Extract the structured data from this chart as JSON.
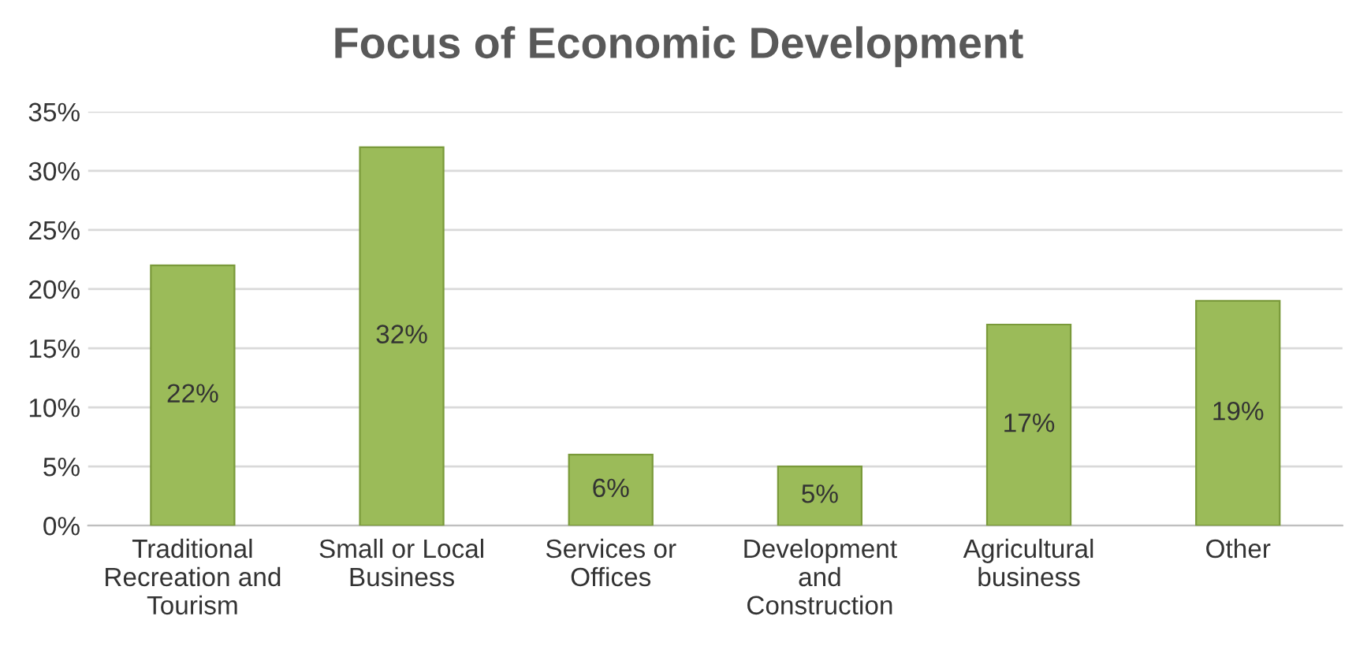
{
  "chart_data": {
    "type": "bar",
    "title": "Focus of Economic Development",
    "categories": [
      "Traditional\nRecreation and\nTourism",
      "Small or Local\nBusiness",
      "Services or\nOffices",
      "Development\nand\nConstruction",
      "Agricultural\nbusiness",
      "Other"
    ],
    "values": [
      22,
      32,
      6,
      5,
      17,
      19
    ],
    "value_labels": [
      "22%",
      "32%",
      "6%",
      "5%",
      "17%",
      "19%"
    ],
    "color": "#9bbb59",
    "ylim": [
      0,
      35
    ],
    "yticks": [
      {
        "value": 0,
        "label": "0%"
      },
      {
        "value": 5,
        "label": "5%"
      },
      {
        "value": 10,
        "label": "10%"
      },
      {
        "value": 15,
        "label": "15%"
      },
      {
        "value": 20,
        "label": "20%"
      },
      {
        "value": 25,
        "label": "25%"
      },
      {
        "value": 30,
        "label": "30%"
      },
      {
        "value": 35,
        "label": "35%"
      }
    ],
    "grid": "y"
  }
}
